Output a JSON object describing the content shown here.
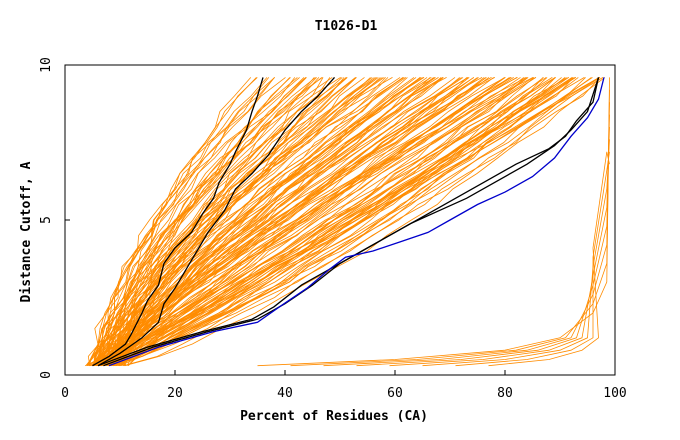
{
  "chart_data": {
    "type": "line",
    "title": "T1026-D1",
    "xlabel": "Percent of Residues (CA)",
    "ylabel": "Distance Cutoff, A",
    "xlim": [
      0,
      100
    ],
    "ylim": [
      0,
      10
    ],
    "x_ticks": [
      0,
      20,
      40,
      60,
      80,
      100
    ],
    "y_ticks": [
      0,
      5,
      10
    ],
    "x_tick_labels": [
      "0",
      "20",
      "40",
      "60",
      "80",
      "100"
    ],
    "y_tick_labels": [
      "0",
      "5",
      "10"
    ],
    "grid": false,
    "legend": "none",
    "colors": {
      "models": "#ff8c00",
      "highlight": "#000000",
      "reference": "#0000cc"
    },
    "series": [
      {
        "color": "#000000",
        "points": [
          [
            5,
            0.3
          ],
          [
            8,
            0.6
          ],
          [
            11,
            1.0
          ],
          [
            12,
            1.3
          ],
          [
            14,
            2.0
          ],
          [
            15,
            2.4
          ],
          [
            17,
            2.9
          ],
          [
            18,
            3.6
          ],
          [
            20,
            4.1
          ],
          [
            23,
            4.6
          ],
          [
            25,
            5.2
          ],
          [
            27,
            5.7
          ],
          [
            28,
            6.2
          ],
          [
            30,
            6.8
          ],
          [
            31,
            7.2
          ],
          [
            33,
            7.9
          ],
          [
            34,
            8.5
          ],
          [
            35,
            9.0
          ],
          [
            36,
            9.6
          ]
        ]
      },
      {
        "color": "#000000",
        "points": [
          [
            6,
            0.3
          ],
          [
            10,
            0.7
          ],
          [
            14,
            1.2
          ],
          [
            17,
            1.7
          ],
          [
            18,
            2.3
          ],
          [
            20,
            2.8
          ],
          [
            22,
            3.4
          ],
          [
            24,
            4.0
          ],
          [
            26,
            4.6
          ],
          [
            29,
            5.3
          ],
          [
            31,
            6.0
          ],
          [
            34,
            6.5
          ],
          [
            37,
            7.1
          ],
          [
            40,
            7.9
          ],
          [
            43,
            8.5
          ],
          [
            46,
            9.0
          ],
          [
            49,
            9.6
          ]
        ]
      },
      {
        "color": "#000000",
        "points": [
          [
            6,
            0.3
          ],
          [
            15,
            0.9
          ],
          [
            25,
            1.4
          ],
          [
            34,
            1.8
          ],
          [
            38,
            2.2
          ],
          [
            43,
            2.9
          ],
          [
            48,
            3.4
          ],
          [
            52,
            3.8
          ],
          [
            57,
            4.3
          ],
          [
            62,
            4.8
          ],
          [
            66,
            5.2
          ],
          [
            71,
            5.7
          ],
          [
            76,
            6.2
          ],
          [
            82,
            6.8
          ],
          [
            88,
            7.3
          ],
          [
            91,
            7.7
          ],
          [
            93,
            8.2
          ],
          [
            96,
            8.8
          ],
          [
            97,
            9.6
          ]
        ]
      },
      {
        "color": "#000000",
        "points": [
          [
            7,
            0.3
          ],
          [
            16,
            0.9
          ],
          [
            26,
            1.4
          ],
          [
            35,
            1.8
          ],
          [
            40,
            2.3
          ],
          [
            45,
            2.9
          ],
          [
            50,
            3.6
          ],
          [
            54,
            4.0
          ],
          [
            58,
            4.4
          ],
          [
            63,
            4.9
          ],
          [
            68,
            5.3
          ],
          [
            73,
            5.7
          ],
          [
            78,
            6.2
          ],
          [
            84,
            6.8
          ],
          [
            89,
            7.4
          ],
          [
            92,
            7.9
          ],
          [
            95,
            8.5
          ],
          [
            97,
            9.6
          ]
        ]
      },
      {
        "color": "#0000cc",
        "points": [
          [
            8,
            0.3
          ],
          [
            17,
            0.9
          ],
          [
            27,
            1.4
          ],
          [
            35,
            1.7
          ],
          [
            39,
            2.2
          ],
          [
            44,
            2.8
          ],
          [
            48,
            3.4
          ],
          [
            51,
            3.8
          ],
          [
            56,
            4.0
          ],
          [
            61,
            4.3
          ],
          [
            66,
            4.6
          ],
          [
            70,
            5.0
          ],
          [
            75,
            5.5
          ],
          [
            80,
            5.9
          ],
          [
            85,
            6.4
          ],
          [
            89,
            7.0
          ],
          [
            92,
            7.7
          ],
          [
            95,
            8.3
          ],
          [
            97,
            8.9
          ],
          [
            98,
            9.6
          ]
        ]
      }
    ]
  }
}
